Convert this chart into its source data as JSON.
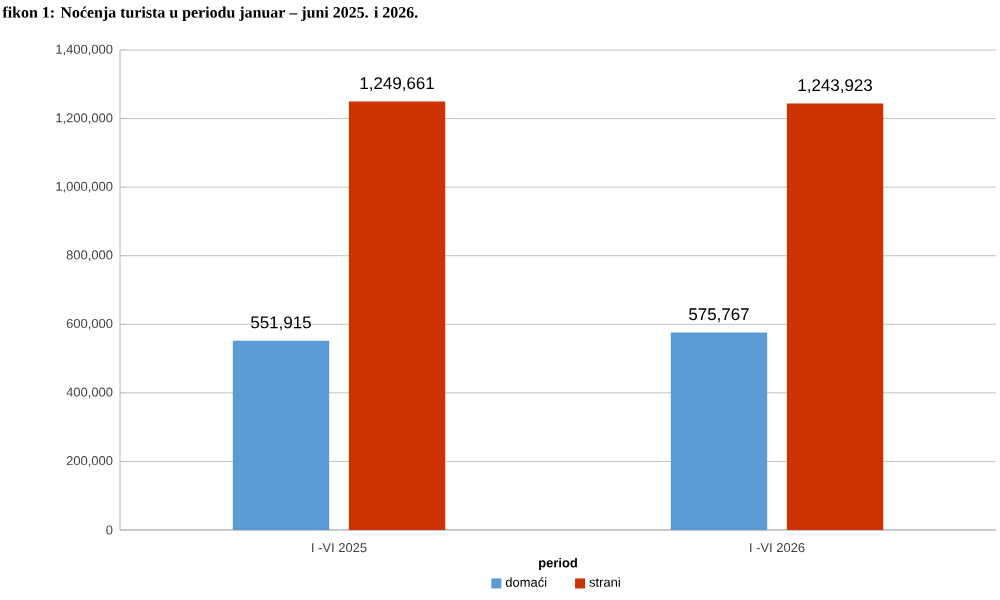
{
  "chart_data": {
    "type": "bar",
    "title": "fikon 1: Noćenja turista u periodu januar – juni 2025. i 2026.",
    "xlabel": "period",
    "categories": [
      "I -VI 2025",
      "I -VI 2026"
    ],
    "series": [
      {
        "name": "domaći",
        "color": "#5b9bd5",
        "values": [
          551915,
          575767
        ],
        "value_labels": [
          "551,915",
          "575,767"
        ]
      },
      {
        "name": "strani",
        "color": "#cc3300",
        "values": [
          1249661,
          1243923
        ],
        "value_labels": [
          "1,249,661",
          "1,243,923"
        ]
      }
    ],
    "ylim": [
      0,
      1400000
    ],
    "yticks": [
      {
        "value": 0,
        "label": "0"
      },
      {
        "value": 200000,
        "label": "200,000"
      },
      {
        "value": 400000,
        "label": "400,000"
      },
      {
        "value": 600000,
        "label": "600,000"
      },
      {
        "value": 800000,
        "label": "800,000"
      },
      {
        "value": 1000000,
        "label": "1,000,000"
      },
      {
        "value": 1200000,
        "label": "1,200,000"
      },
      {
        "value": 1400000,
        "label": "1,400,000"
      }
    ],
    "grid": "y",
    "legend": "bottom"
  }
}
